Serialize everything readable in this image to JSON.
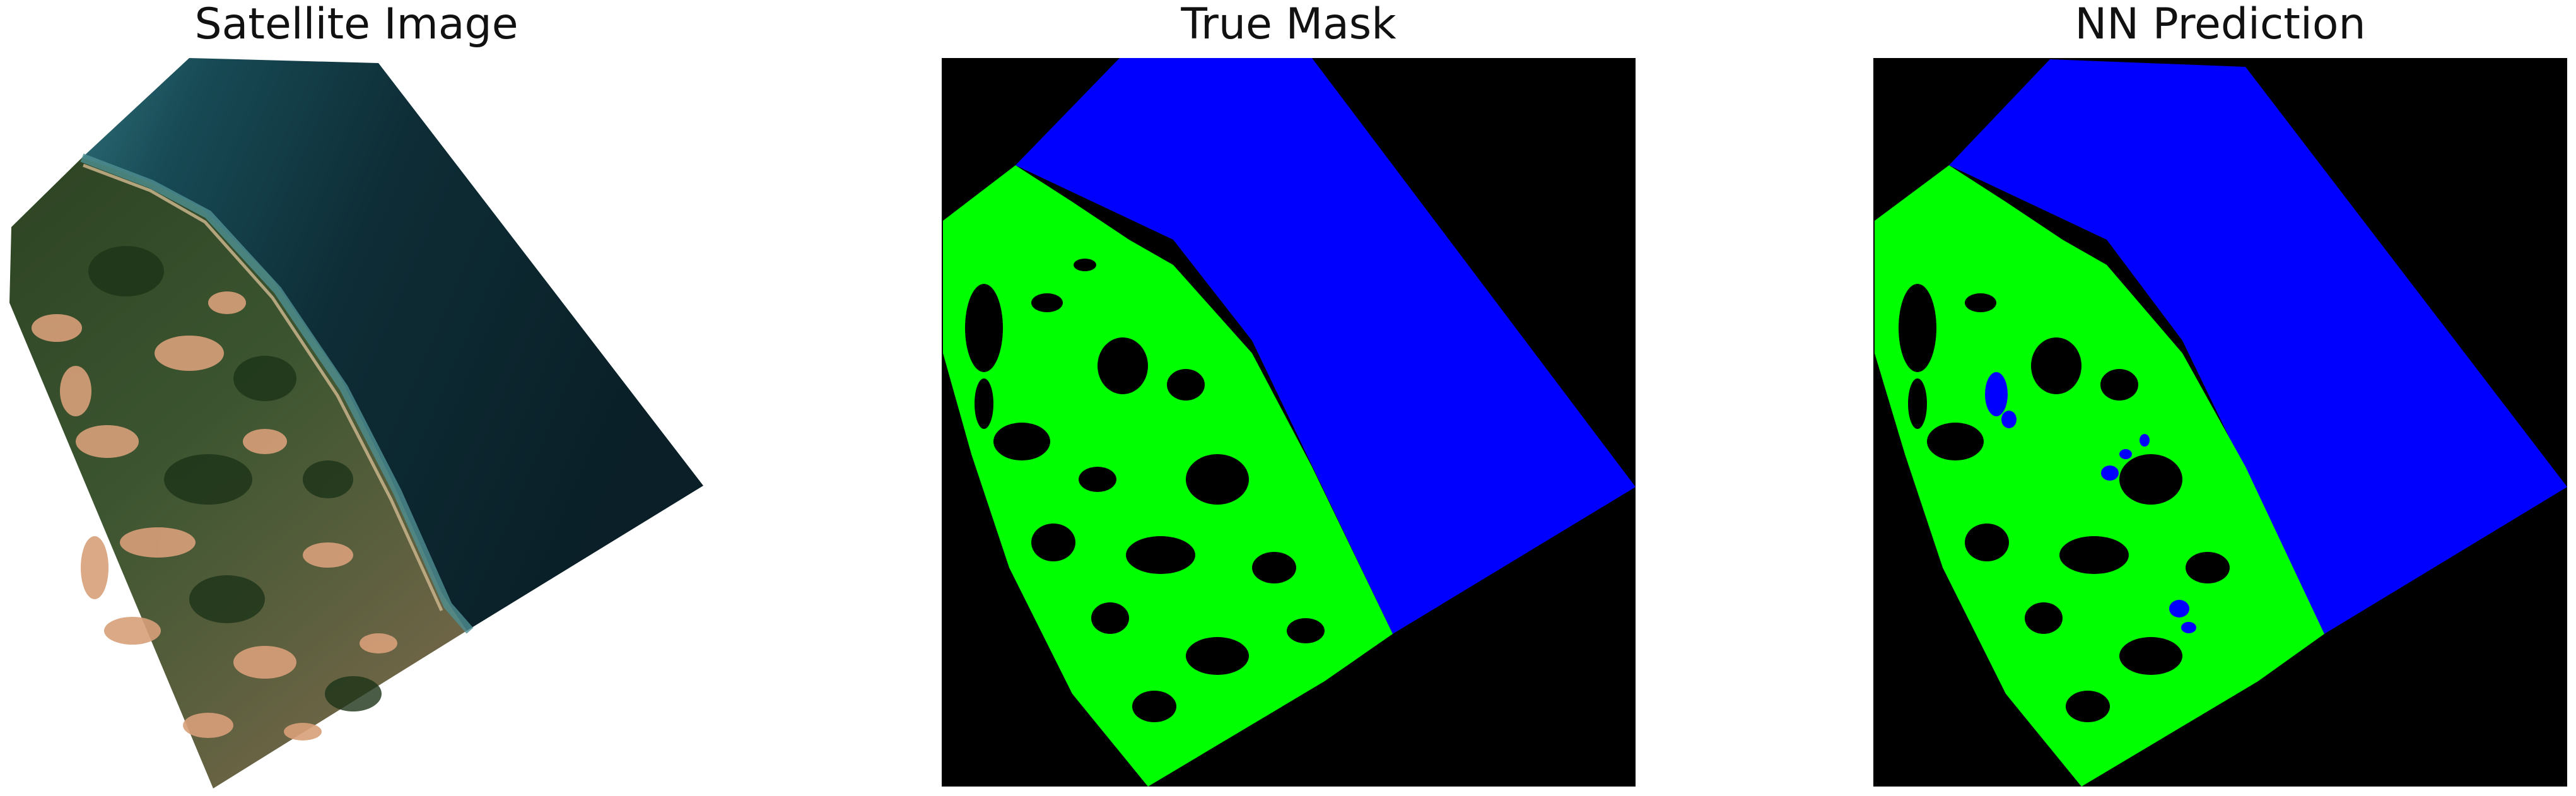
{
  "panels": [
    {
      "id": "satellite",
      "title": "Satellite Image"
    },
    {
      "id": "true-mask",
      "title": "True Mask"
    },
    {
      "id": "prediction",
      "title": "NN Prediction"
    }
  ],
  "colors": {
    "background": "#000000",
    "water": "#0000ff",
    "vegetation": "#00ff00",
    "sea": "#0d2a33",
    "land": "#2f4a25",
    "sand": "#d8a07a"
  }
}
